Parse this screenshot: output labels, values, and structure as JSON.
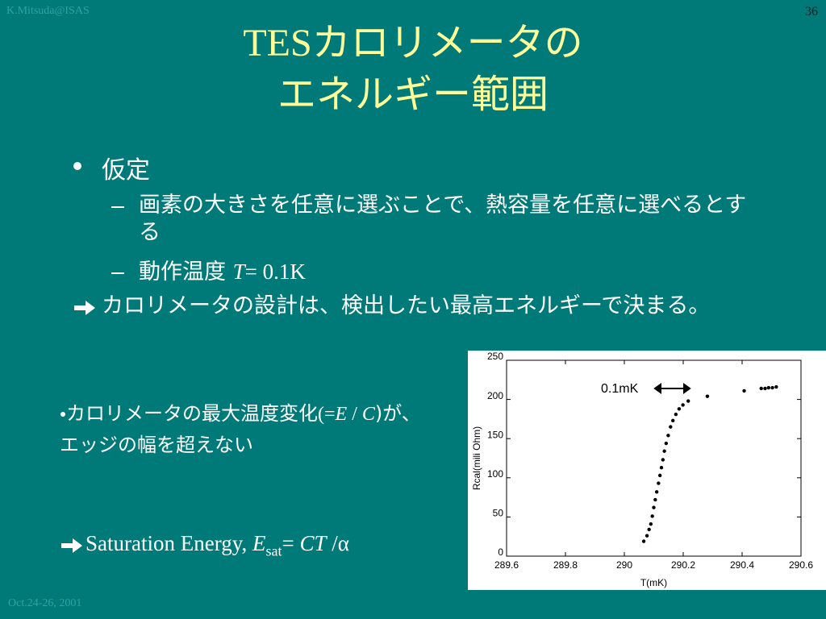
{
  "header": {
    "author": "K.Mitsuda@ISAS",
    "page": "36",
    "title_lines": [
      "TESカロリメータの",
      "エネルギー範囲"
    ]
  },
  "body": {
    "bullet": "仮定",
    "sub_item_1": "画素の大きさを任意に選ぶことで、熱容量を任意に選べるとする",
    "sub_item_2": [
      "動作温度 ",
      "T",
      "= 0.1K"
    ],
    "conclusion": "カロリメータの設計は、検出したい最高エネルギーで決まる。"
  },
  "notes": {
    "condition": [
      "カロリメータの最大温度変化",
      "(=",
      "E",
      " / ",
      "C",
      ")が、エッジの幅を超えない"
    ],
    "saturation": [
      "Saturation Energy, ",
      "E",
      "sat",
      "= ",
      "CT",
      " /α"
    ]
  },
  "footer": {
    "date": "Oct.24-26, 2001"
  },
  "chart_data": {
    "type": "scatter",
    "x_label": "T(mK)",
    "y_label": "Rcal(mili Ohm)",
    "annotation": "0.1mK",
    "color": "#000000",
    "x": [
      290.066,
      290.077,
      290.084,
      290.09,
      290.095,
      290.1,
      290.105,
      290.11,
      290.116,
      290.121,
      290.126,
      290.131,
      290.136,
      290.142,
      290.149,
      290.157,
      290.165,
      290.175,
      290.186,
      290.199,
      290.217,
      290.282,
      290.407,
      290.465,
      290.478,
      290.49,
      290.503,
      290.516
    ],
    "values": [
      19,
      26,
      34,
      41,
      51,
      62,
      72,
      82,
      93,
      103,
      113,
      123,
      134,
      144,
      154,
      165,
      173,
      181,
      188,
      193,
      198,
      204,
      211,
      214,
      214,
      215,
      215,
      216
    ],
    "xlim": [
      289.6,
      290.6
    ],
    "xticks": [
      289.6,
      289.8,
      290,
      290.2,
      290.4,
      290.6
    ],
    "ylim": [
      0,
      250
    ],
    "yticks": [
      0,
      50,
      100,
      150,
      200,
      250
    ]
  }
}
